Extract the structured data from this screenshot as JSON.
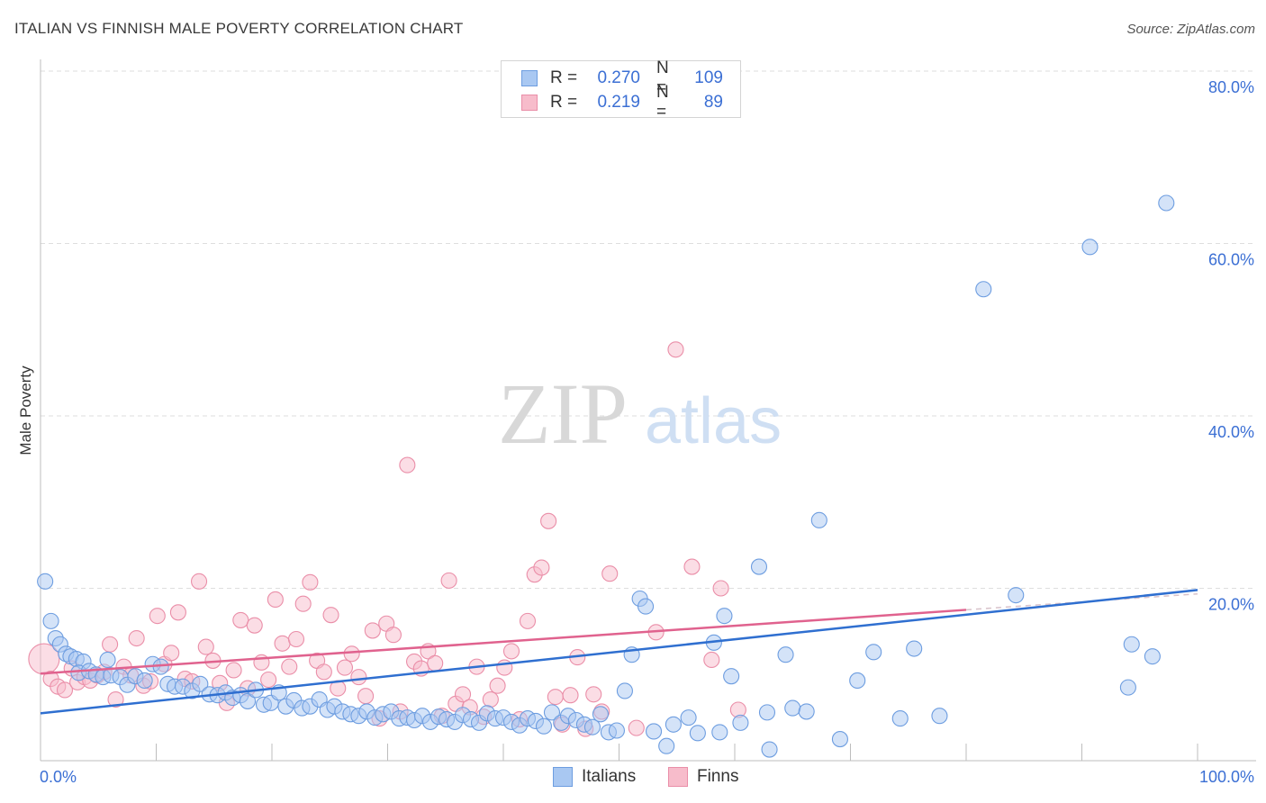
{
  "header": {
    "title": "ITALIAN VS FINNISH MALE POVERTY CORRELATION CHART",
    "source": "Source: ZipAtlas.com"
  },
  "legend": {
    "italians": {
      "r_label": "R =",
      "r_value": "0.270",
      "n_label": "N =",
      "n_value": "109"
    },
    "finns": {
      "r_label": "R =",
      "r_value": "0.219",
      "n_label": "N =",
      "n_value": "89"
    }
  },
  "colors": {
    "italians_fill": "#a9c8f2",
    "italians_stroke": "#6d9de0",
    "italians_line": "#2f6fd0",
    "finns_fill": "#f7bccb",
    "finns_stroke": "#ea8ea8",
    "finns_line": "#e0628e",
    "tick_label": "#3b6fd4",
    "grid": "#dedede"
  },
  "watermark": {
    "zip": "ZIP",
    "atlas": "atlas"
  },
  "chart_data": {
    "type": "scatter",
    "title": "ITALIAN VS FINNISH MALE POVERTY CORRELATION CHART",
    "ylabel": "Male Poverty",
    "xlabel": "",
    "xlim": [
      0,
      100
    ],
    "ylim": [
      0,
      80
    ],
    "x_tick_labels": [
      "0.0%",
      "100.0%"
    ],
    "y_tick_labels": [
      "20.0%",
      "40.0%",
      "60.0%",
      "80.0%"
    ],
    "y_ticks": [
      20,
      40,
      60,
      80
    ],
    "grid": true,
    "legend_position": "bottom",
    "series": [
      {
        "name": "Italians",
        "r": 0.27,
        "n": 109,
        "trend": {
          "x": [
            0,
            100
          ],
          "y": [
            5.5,
            19.8
          ]
        },
        "points": [
          [
            0.4,
            20.8
          ],
          [
            0.9,
            16.2
          ],
          [
            1.3,
            14.2
          ],
          [
            1.7,
            13.5
          ],
          [
            2.2,
            12.4
          ],
          [
            2.6,
            12.1
          ],
          [
            3.1,
            11.8
          ],
          [
            3.7,
            11.5
          ],
          [
            3.3,
            10.2
          ],
          [
            4.2,
            10.4
          ],
          [
            4.8,
            10.0
          ],
          [
            5.4,
            9.7
          ],
          [
            6.1,
            9.9
          ],
          [
            6.9,
            9.7
          ],
          [
            5.8,
            11.7
          ],
          [
            7.5,
            8.8
          ],
          [
            8.2,
            9.8
          ],
          [
            9.0,
            9.3
          ],
          [
            9.7,
            11.2
          ],
          [
            10.4,
            10.9
          ],
          [
            11.0,
            8.9
          ],
          [
            11.6,
            8.6
          ],
          [
            12.3,
            8.6
          ],
          [
            13.1,
            8.1
          ],
          [
            13.8,
            8.9
          ],
          [
            14.6,
            7.7
          ],
          [
            15.3,
            7.6
          ],
          [
            16.0,
            7.9
          ],
          [
            16.6,
            7.3
          ],
          [
            17.3,
            7.6
          ],
          [
            17.9,
            6.9
          ],
          [
            18.6,
            8.2
          ],
          [
            19.3,
            6.5
          ],
          [
            19.9,
            6.7
          ],
          [
            20.6,
            7.9
          ],
          [
            21.2,
            6.3
          ],
          [
            21.9,
            7.0
          ],
          [
            22.6,
            6.1
          ],
          [
            23.3,
            6.3
          ],
          [
            24.1,
            7.1
          ],
          [
            24.8,
            5.9
          ],
          [
            25.4,
            6.3
          ],
          [
            26.1,
            5.7
          ],
          [
            26.8,
            5.4
          ],
          [
            27.5,
            5.2
          ],
          [
            28.2,
            5.7
          ],
          [
            28.9,
            5.0
          ],
          [
            29.6,
            5.4
          ],
          [
            30.3,
            5.7
          ],
          [
            31.0,
            4.9
          ],
          [
            31.7,
            5.0
          ],
          [
            32.3,
            4.7
          ],
          [
            33.0,
            5.2
          ],
          [
            33.7,
            4.5
          ],
          [
            34.4,
            5.1
          ],
          [
            35.1,
            4.8
          ],
          [
            35.8,
            4.5
          ],
          [
            36.5,
            5.3
          ],
          [
            37.2,
            4.8
          ],
          [
            37.9,
            4.4
          ],
          [
            38.6,
            5.5
          ],
          [
            39.3,
            4.9
          ],
          [
            40.0,
            5.0
          ],
          [
            40.7,
            4.5
          ],
          [
            41.4,
            4.1
          ],
          [
            42.1,
            4.9
          ],
          [
            42.8,
            4.6
          ],
          [
            43.5,
            4.0
          ],
          [
            44.2,
            5.6
          ],
          [
            45.0,
            4.4
          ],
          [
            45.6,
            5.2
          ],
          [
            46.3,
            4.7
          ],
          [
            47.0,
            4.2
          ],
          [
            47.7,
            3.9
          ],
          [
            48.4,
            5.4
          ],
          [
            49.1,
            3.3
          ],
          [
            49.8,
            3.5
          ],
          [
            50.5,
            8.1
          ],
          [
            51.1,
            12.3
          ],
          [
            51.8,
            18.8
          ],
          [
            52.3,
            17.9
          ],
          [
            53.0,
            3.4
          ],
          [
            54.1,
            1.7
          ],
          [
            54.7,
            4.2
          ],
          [
            56.0,
            5.0
          ],
          [
            56.8,
            3.2
          ],
          [
            58.2,
            13.7
          ],
          [
            58.7,
            3.3
          ],
          [
            59.1,
            16.8
          ],
          [
            59.7,
            9.8
          ],
          [
            60.5,
            4.4
          ],
          [
            62.1,
            22.5
          ],
          [
            63.0,
            1.3
          ],
          [
            64.4,
            12.3
          ],
          [
            65.0,
            6.1
          ],
          [
            66.2,
            5.7
          ],
          [
            67.3,
            27.9
          ],
          [
            69.1,
            2.5
          ],
          [
            70.6,
            9.3
          ],
          [
            72.0,
            12.6
          ],
          [
            74.3,
            4.9
          ],
          [
            75.5,
            13.0
          ],
          [
            77.7,
            5.2
          ],
          [
            81.5,
            54.7
          ],
          [
            84.3,
            19.2
          ],
          [
            90.7,
            59.6
          ],
          [
            94.3,
            13.5
          ],
          [
            96.1,
            12.1
          ],
          [
            97.3,
            64.7
          ],
          [
            94.0,
            8.5
          ],
          [
            62.8,
            5.6
          ]
        ]
      },
      {
        "name": "Finns",
        "r": 0.219,
        "n": 89,
        "trend": {
          "x": [
            0,
            80
          ],
          "y": [
            10.1,
            17.5
          ]
        },
        "points": [
          [
            0.3,
            11.8
          ],
          [
            0.9,
            9.5
          ],
          [
            1.5,
            8.6
          ],
          [
            2.1,
            8.2
          ],
          [
            2.7,
            10.7
          ],
          [
            3.2,
            9.1
          ],
          [
            3.8,
            9.7
          ],
          [
            4.3,
            9.3
          ],
          [
            4.9,
            9.9
          ],
          [
            5.5,
            10.3
          ],
          [
            6.0,
            13.5
          ],
          [
            6.5,
            7.1
          ],
          [
            7.2,
            10.9
          ],
          [
            7.8,
            9.9
          ],
          [
            8.3,
            14.2
          ],
          [
            8.9,
            8.7
          ],
          [
            9.5,
            9.2
          ],
          [
            10.1,
            16.8
          ],
          [
            10.7,
            11.2
          ],
          [
            11.3,
            12.5
          ],
          [
            11.9,
            17.2
          ],
          [
            12.5,
            9.5
          ],
          [
            13.1,
            9.2
          ],
          [
            13.7,
            20.8
          ],
          [
            14.3,
            13.2
          ],
          [
            14.9,
            11.6
          ],
          [
            15.5,
            9.0
          ],
          [
            16.1,
            6.7
          ],
          [
            16.7,
            10.5
          ],
          [
            17.3,
            16.3
          ],
          [
            17.9,
            8.4
          ],
          [
            18.5,
            15.7
          ],
          [
            19.1,
            11.4
          ],
          [
            19.7,
            9.4
          ],
          [
            20.3,
            18.7
          ],
          [
            20.9,
            13.6
          ],
          [
            21.5,
            10.9
          ],
          [
            22.1,
            14.1
          ],
          [
            22.7,
            18.2
          ],
          [
            23.3,
            20.7
          ],
          [
            23.9,
            11.6
          ],
          [
            24.5,
            10.3
          ],
          [
            25.1,
            16.9
          ],
          [
            25.7,
            8.4
          ],
          [
            26.3,
            10.8
          ],
          [
            26.9,
            12.4
          ],
          [
            27.5,
            9.7
          ],
          [
            28.1,
            7.5
          ],
          [
            28.7,
            15.1
          ],
          [
            29.3,
            4.9
          ],
          [
            29.9,
            15.9
          ],
          [
            30.5,
            14.6
          ],
          [
            31.1,
            5.7
          ],
          [
            31.7,
            34.3
          ],
          [
            32.3,
            11.5
          ],
          [
            32.9,
            10.7
          ],
          [
            33.5,
            12.7
          ],
          [
            34.1,
            11.3
          ],
          [
            34.7,
            5.2
          ],
          [
            35.3,
            20.9
          ],
          [
            35.9,
            6.6
          ],
          [
            36.5,
            7.7
          ],
          [
            37.1,
            6.2
          ],
          [
            37.7,
            10.9
          ],
          [
            38.3,
            5.1
          ],
          [
            38.9,
            7.1
          ],
          [
            39.5,
            8.7
          ],
          [
            40.1,
            10.8
          ],
          [
            40.7,
            12.7
          ],
          [
            41.4,
            4.8
          ],
          [
            42.1,
            16.2
          ],
          [
            42.7,
            21.6
          ],
          [
            43.3,
            22.4
          ],
          [
            43.9,
            27.8
          ],
          [
            44.5,
            7.4
          ],
          [
            45.1,
            4.2
          ],
          [
            45.8,
            7.6
          ],
          [
            46.4,
            12.0
          ],
          [
            47.1,
            3.7
          ],
          [
            47.8,
            7.7
          ],
          [
            48.5,
            5.7
          ],
          [
            49.2,
            21.7
          ],
          [
            51.5,
            3.8
          ],
          [
            53.2,
            14.9
          ],
          [
            54.9,
            47.7
          ],
          [
            56.3,
            22.5
          ],
          [
            58.0,
            11.7
          ],
          [
            58.8,
            20.0
          ],
          [
            60.3,
            5.9
          ]
        ]
      }
    ]
  },
  "bottom_legend": {
    "italians": "Italians",
    "finns": "Finns"
  }
}
